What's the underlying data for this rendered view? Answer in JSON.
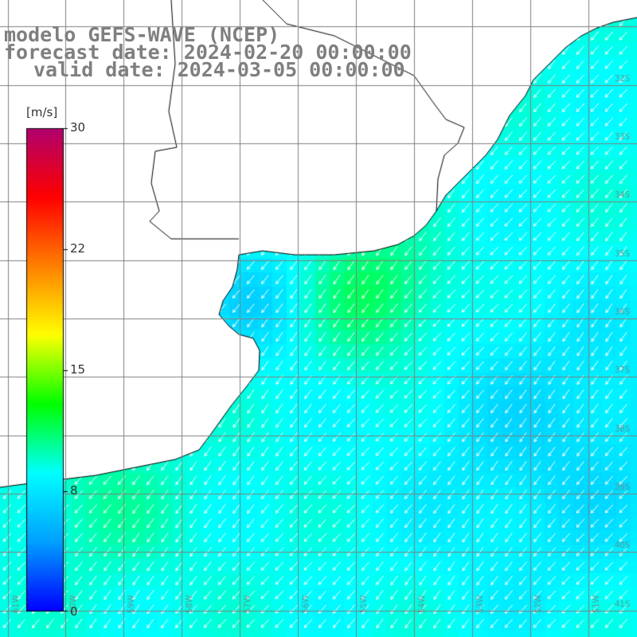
{
  "titles": {
    "model": "modelo GEFS-WAVE (NCEP)",
    "forecast": "forecast date: 2024-02-20 00:00:00",
    "valid": "valid date: 2024-03-05 00:00:00"
  },
  "legend": {
    "unit": "[m/s]",
    "ticks": [
      "30",
      "22",
      "15",
      "8",
      "0"
    ],
    "range": [
      0,
      30
    ],
    "colors": [
      "#0000ff",
      "#00a0ff",
      "#00ffff",
      "#00ff00",
      "#ffff00",
      "#ff8000",
      "#ff0000",
      "#b0006e"
    ]
  },
  "map": {
    "variable": "wind speed and direction",
    "grid": "on",
    "land_color": "#ffffff",
    "coastline_color": "#000000",
    "grid_color": "#808080",
    "arrow_color": "#ffffff",
    "latitude_labels": [
      "32S",
      "33S",
      "34S",
      "35S",
      "36S",
      "37S",
      "38S",
      "39S",
      "40S",
      "41S"
    ],
    "longitude_labels": [
      "61W",
      "60W",
      "59W",
      "58W",
      "57W",
      "56W",
      "55W",
      "54W",
      "53W",
      "52W",
      "51W"
    ]
  }
}
